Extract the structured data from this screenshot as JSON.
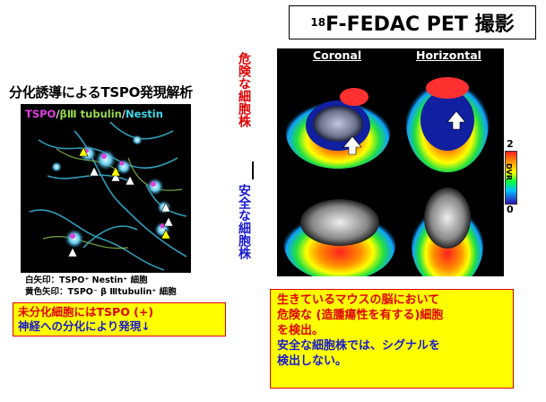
{
  "title": {
    "sup": "18",
    "main": "F-FEDAC PET 撮影"
  },
  "left_heading": "分化誘導によるTSPO発現解析",
  "micro_legend": {
    "tspo": "TSPO",
    "sep1": "/",
    "tubulin": "βⅢ tubulin",
    "sep2": "/",
    "nestin": "Nestin"
  },
  "arrow_notes": {
    "white": "白矢印：TSPO⁺ Nestin⁺ 細胞",
    "yellow": "黄色矢印：TSPO⁻ β Ⅲtubulin⁺ 細胞"
  },
  "left_box": {
    "line1": "未分化細胞にはTSPO (+)",
    "line2": "神経への分化により発現↓"
  },
  "pet": {
    "col1": "Coronal",
    "col2": "Horizontal",
    "row1": "危険な細胞株",
    "row2": "安全な細胞株"
  },
  "colorbar": {
    "max": "2",
    "min": "0",
    "label": "DVR"
  },
  "right_box": {
    "line1": "生きているマウスの脳において",
    "line2": "危険な (造腫瘍性を有する)細胞",
    "line3": "を検出。",
    "line4": "安全な細胞株では、シグナルを",
    "line5": "検出しない。"
  }
}
